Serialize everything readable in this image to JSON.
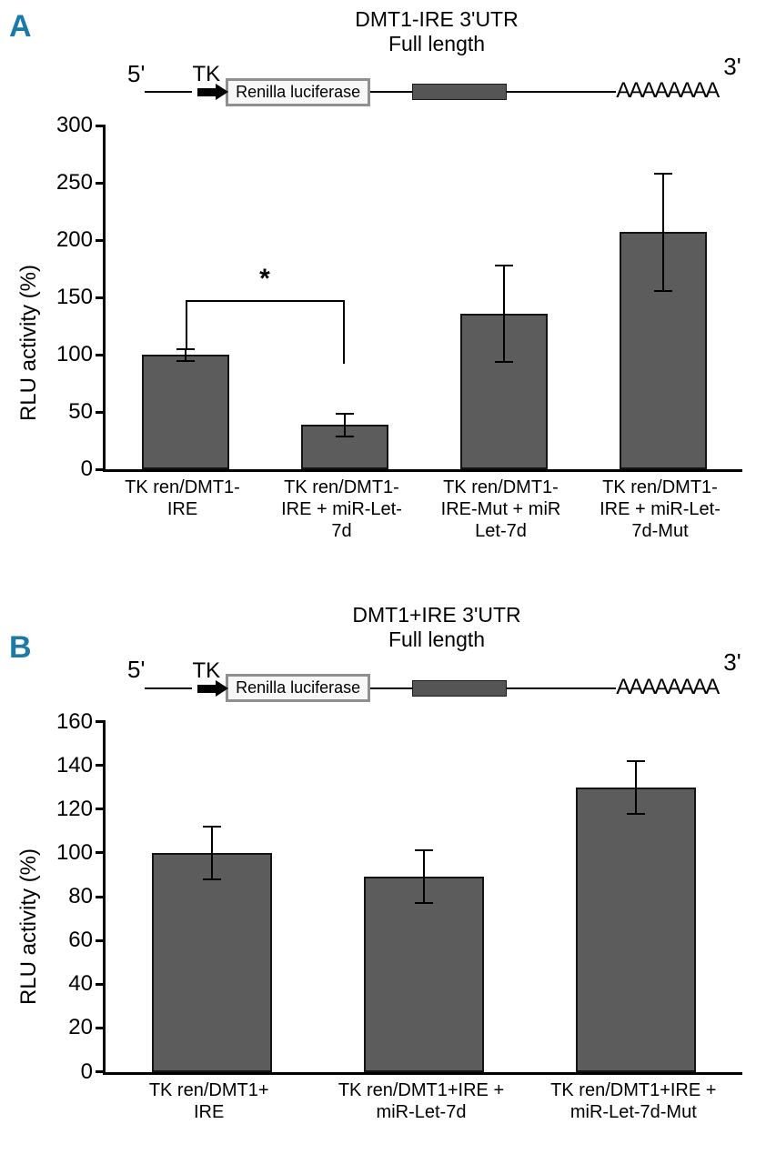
{
  "panels": [
    {
      "label": "A",
      "construct": {
        "title_line1": "DMT1-IRE 3'UTR",
        "title_line2": "Full length",
        "five_prime": "5'",
        "promoter": "TK",
        "reporter": "Renilla luciferase",
        "poly_a": "AAAAAAAA",
        "three_prime": "3'"
      }
    },
    {
      "label": "B",
      "construct": {
        "title_line1": "DMT1+IRE 3'UTR",
        "title_line2": "Full length",
        "five_prime": "5'",
        "promoter": "TK",
        "reporter": "Renilla luciferase",
        "poly_a": "AAAAAAAA",
        "three_prime": "3'"
      }
    }
  ],
  "chart_data": [
    {
      "type": "bar",
      "panel": "A",
      "title": "DMT1-IRE 3'UTR Full length",
      "xlabel": "",
      "ylabel": "RLU activity (%)",
      "ylim": [
        0,
        300
      ],
      "yticks": [
        0,
        50,
        100,
        150,
        200,
        250,
        300
      ],
      "grid": false,
      "legend": false,
      "categories": [
        "TK ren/DMT1-\nIRE",
        "TK ren/DMT1-\nIRE + miR-Let-\n7d",
        "TK ren/DMT1-\nIRE-Mut + miR\nLet-7d",
        "TK ren/DMT1-\nIRE + miR-Let-\n7d-Mut"
      ],
      "values": [
        100,
        39,
        136,
        207
      ],
      "errors": [
        5,
        10,
        42,
        51
      ],
      "bar_color": "#5c5c5c",
      "significance": {
        "from": 0,
        "to": 1,
        "label": "*",
        "bracket_y": 148,
        "drop_left_to": 106,
        "drop_right_to": 92
      }
    },
    {
      "type": "bar",
      "panel": "B",
      "title": "DMT1+IRE 3'UTR Full length",
      "xlabel": "",
      "ylabel": "RLU activity (%)",
      "ylim": [
        0,
        160
      ],
      "yticks": [
        0,
        20,
        40,
        60,
        80,
        100,
        120,
        140,
        160
      ],
      "grid": false,
      "legend": false,
      "categories": [
        "TK ren/DMT1+\nIRE",
        "TK ren/DMT1+IRE +\nmiR-Let-7d",
        "TK ren/DMT1+IRE +\nmiR-Let-7d-Mut"
      ],
      "values": [
        100,
        89,
        130
      ],
      "errors": [
        12,
        12,
        12
      ],
      "bar_color": "#5c5c5c"
    }
  ],
  "colors": {
    "panel_label": "#1b7aa6",
    "bar": "#5c5c5c",
    "axis": "#000000"
  }
}
